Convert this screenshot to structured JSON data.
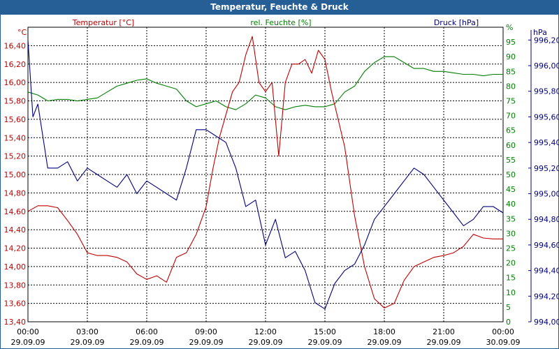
{
  "chart_data": {
    "type": "line",
    "title": "Temperatur, Feuchte & Druck",
    "x_ticks": [
      {
        "time": "00:00",
        "date": "29.09.09"
      },
      {
        "time": "03:00",
        "date": "29.09.09"
      },
      {
        "time": "06:00",
        "date": "29.09.09"
      },
      {
        "time": "09:00",
        "date": "29.09.09"
      },
      {
        "time": "12:00",
        "date": "29.09.09"
      },
      {
        "time": "15:00",
        "date": "29.09.09"
      },
      {
        "time": "18:00",
        "date": "29.09.09"
      },
      {
        "time": "21:00",
        "date": "29.09.09"
      },
      {
        "time": "00:00",
        "date": "30.09.09"
      }
    ],
    "xlim": [
      "29.09.09 00:00",
      "30.09.09 00:00"
    ],
    "grid": true,
    "axes": {
      "temperature": {
        "unit": "°C",
        "label": "Temperatur [°C]",
        "color": "#c00000",
        "ylim": [
          13.4,
          16.6
        ],
        "ticks": [
          "13,40",
          "13,60",
          "13,80",
          "14,00",
          "14,20",
          "14,40",
          "14,60",
          "14,80",
          "15,00",
          "15,20",
          "15,40",
          "15,60",
          "15,80",
          "16,00",
          "16,20",
          "16,40"
        ]
      },
      "humidity": {
        "unit": "%",
        "label": "rel. Feuchte [%]",
        "color": "#007f00",
        "ylim": [
          0,
          100
        ],
        "ticks": [
          "0",
          "5",
          "10",
          "15",
          "20",
          "25",
          "30",
          "35",
          "40",
          "45",
          "50",
          "55",
          "60",
          "65",
          "70",
          "75",
          "80",
          "85",
          "90",
          "95",
          "%"
        ]
      },
      "pressure": {
        "unit": "hPa",
        "label": "Druck [hPa]",
        "color": "#00007f",
        "ylim": [
          994.0,
          996.3
        ],
        "ticks": [
          "994,00",
          "994,20",
          "994,40",
          "994,60",
          "994,80",
          "995,00",
          "995,20",
          "995,40",
          "995,60",
          "995,80",
          "996,00",
          "996,20"
        ]
      }
    },
    "series": [
      {
        "name": "Temperatur [°C]",
        "axis": "temperature",
        "color": "#c00000",
        "x": [
          "29.09.09 00:00",
          "29.09.09 00:30",
          "29.09.09 01:00",
          "29.09.09 01:30",
          "29.09.09 02:00",
          "29.09.09 02:30",
          "29.09.09 03:00",
          "29.09.09 03:30",
          "29.09.09 04:00",
          "29.09.09 04:30",
          "29.09.09 05:00",
          "29.09.09 05:30",
          "29.09.09 06:00",
          "29.09.09 06:30",
          "29.09.09 07:00",
          "29.09.09 07:30",
          "29.09.09 08:00",
          "29.09.09 08:30",
          "29.09.09 09:00",
          "29.09.09 09:20",
          "29.09.09 09:40",
          "29.09.09 10:00",
          "29.09.09 10:20",
          "29.09.09 10:40",
          "29.09.09 11:00",
          "29.09.09 11:20",
          "29.09.09 11:40",
          "29.09.09 12:00",
          "29.09.09 12:20",
          "29.09.09 12:40",
          "29.09.09 13:00",
          "29.09.09 13:20",
          "29.09.09 13:40",
          "29.09.09 14:00",
          "29.09.09 14:20",
          "29.09.09 14:40",
          "29.09.09 15:00",
          "29.09.09 15:20",
          "29.09.09 15:40",
          "29.09.09 16:00",
          "29.09.09 16:30",
          "29.09.09 17:00",
          "29.09.09 17:30",
          "29.09.09 18:00",
          "29.09.09 18:30",
          "29.09.09 19:00",
          "29.09.09 19:30",
          "29.09.09 20:00",
          "29.09.09 20:30",
          "29.09.09 21:00",
          "29.09.09 21:30",
          "29.09.09 22:00",
          "29.09.09 22:30",
          "29.09.09 23:00",
          "29.09.09 23:30",
          "30.09.09 00:00"
        ],
        "values": [
          14.6,
          14.66,
          14.66,
          14.64,
          14.5,
          14.35,
          14.15,
          14.12,
          14.12,
          14.1,
          14.05,
          13.92,
          13.86,
          13.9,
          13.83,
          14.1,
          14.15,
          14.35,
          14.65,
          15.05,
          15.4,
          15.65,
          15.9,
          16.0,
          16.3,
          16.5,
          16.0,
          15.9,
          16.0,
          15.2,
          16.0,
          16.2,
          16.2,
          16.25,
          16.1,
          16.35,
          16.25,
          15.9,
          15.6,
          15.3,
          14.55,
          14.0,
          13.65,
          13.55,
          13.6,
          13.85,
          14.0,
          14.05,
          14.1,
          14.12,
          14.15,
          14.22,
          14.35,
          14.31,
          14.3,
          14.3
        ]
      },
      {
        "name": "rel. Feuchte [%]",
        "axis": "humidity",
        "color": "#007f00",
        "x": [
          "29.09.09 00:00",
          "29.09.09 00:30",
          "29.09.09 01:00",
          "29.09.09 01:30",
          "29.09.09 02:00",
          "29.09.09 02:30",
          "29.09.09 03:00",
          "29.09.09 03:30",
          "29.09.09 04:00",
          "29.09.09 04:30",
          "29.09.09 05:00",
          "29.09.09 05:30",
          "29.09.09 06:00",
          "29.09.09 06:30",
          "29.09.09 07:00",
          "29.09.09 07:30",
          "29.09.09 08:00",
          "29.09.09 08:30",
          "29.09.09 09:00",
          "29.09.09 09:30",
          "29.09.09 10:00",
          "29.09.09 10:30",
          "29.09.09 11:00",
          "29.09.09 11:30",
          "29.09.09 12:00",
          "29.09.09 12:30",
          "29.09.09 13:00",
          "29.09.09 13:30",
          "29.09.09 14:00",
          "29.09.09 14:30",
          "29.09.09 15:00",
          "29.09.09 15:30",
          "29.09.09 16:00",
          "29.09.09 16:30",
          "29.09.09 17:00",
          "29.09.09 17:30",
          "29.09.09 18:00",
          "29.09.09 18:30",
          "29.09.09 19:00",
          "29.09.09 19:30",
          "29.09.09 20:00",
          "29.09.09 20:30",
          "29.09.09 21:00",
          "29.09.09 21:30",
          "29.09.09 22:00",
          "29.09.09 22:30",
          "29.09.09 23:00",
          "29.09.09 23:30",
          "30.09.09 00:00"
        ],
        "values": [
          78,
          77,
          75,
          75.5,
          75.5,
          75,
          75.5,
          76,
          78,
          80,
          81,
          82,
          82.5,
          81,
          80,
          79,
          75,
          73,
          74,
          75,
          73,
          72,
          74,
          77,
          76,
          73,
          72,
          73,
          73.5,
          73,
          73,
          74,
          78,
          80,
          85,
          88,
          90,
          90,
          88,
          86,
          86,
          85,
          85,
          84.5,
          84,
          84,
          83.5,
          84,
          84
        ]
      },
      {
        "name": "Druck [hPa]",
        "axis": "pressure",
        "color": "#00007f",
        "x": [
          "29.09.09 00:00",
          "29.09.09 00:15",
          "29.09.09 00:30",
          "29.09.09 01:00",
          "29.09.09 01:30",
          "29.09.09 02:00",
          "29.09.09 02:30",
          "29.09.09 03:00",
          "29.09.09 03:30",
          "29.09.09 04:00",
          "29.09.09 04:30",
          "29.09.09 05:00",
          "29.09.09 05:30",
          "29.09.09 06:00",
          "29.09.09 06:30",
          "29.09.09 07:00",
          "29.09.09 07:30",
          "29.09.09 08:00",
          "29.09.09 08:30",
          "29.09.09 09:00",
          "29.09.09 09:30",
          "29.09.09 10:00",
          "29.09.09 10:30",
          "29.09.09 11:00",
          "29.09.09 11:30",
          "29.09.09 12:00",
          "29.09.09 12:30",
          "29.09.09 13:00",
          "29.09.09 13:30",
          "29.09.09 14:00",
          "29.09.09 14:30",
          "29.09.09 15:00",
          "29.09.09 15:30",
          "29.09.09 16:00",
          "29.09.09 16:30",
          "29.09.09 17:00",
          "29.09.09 17:30",
          "29.09.09 18:00",
          "29.09.09 18:30",
          "29.09.09 19:00",
          "29.09.09 19:30",
          "29.09.09 20:00",
          "29.09.09 20:30",
          "29.09.09 21:00",
          "29.09.09 21:30",
          "29.09.09 22:00",
          "29.09.09 22:30",
          "29.09.09 23:00",
          "29.09.09 23:30",
          "30.09.09 00:00"
        ],
        "values": [
          996.2,
          995.6,
          995.7,
          995.2,
          995.2,
          995.25,
          995.1,
          995.2,
          995.15,
          995.1,
          995.05,
          995.15,
          995.0,
          995.1,
          995.05,
          995.0,
          994.95,
          995.2,
          995.5,
          995.5,
          995.45,
          995.4,
          995.2,
          994.9,
          994.95,
          994.6,
          994.8,
          994.5,
          994.55,
          994.4,
          994.15,
          994.1,
          994.3,
          994.4,
          994.45,
          994.6,
          994.8,
          994.9,
          995.0,
          995.1,
          995.2,
          995.15,
          995.05,
          994.95,
          994.85,
          994.75,
          994.8,
          994.9,
          994.9,
          994.85
        ]
      }
    ]
  }
}
